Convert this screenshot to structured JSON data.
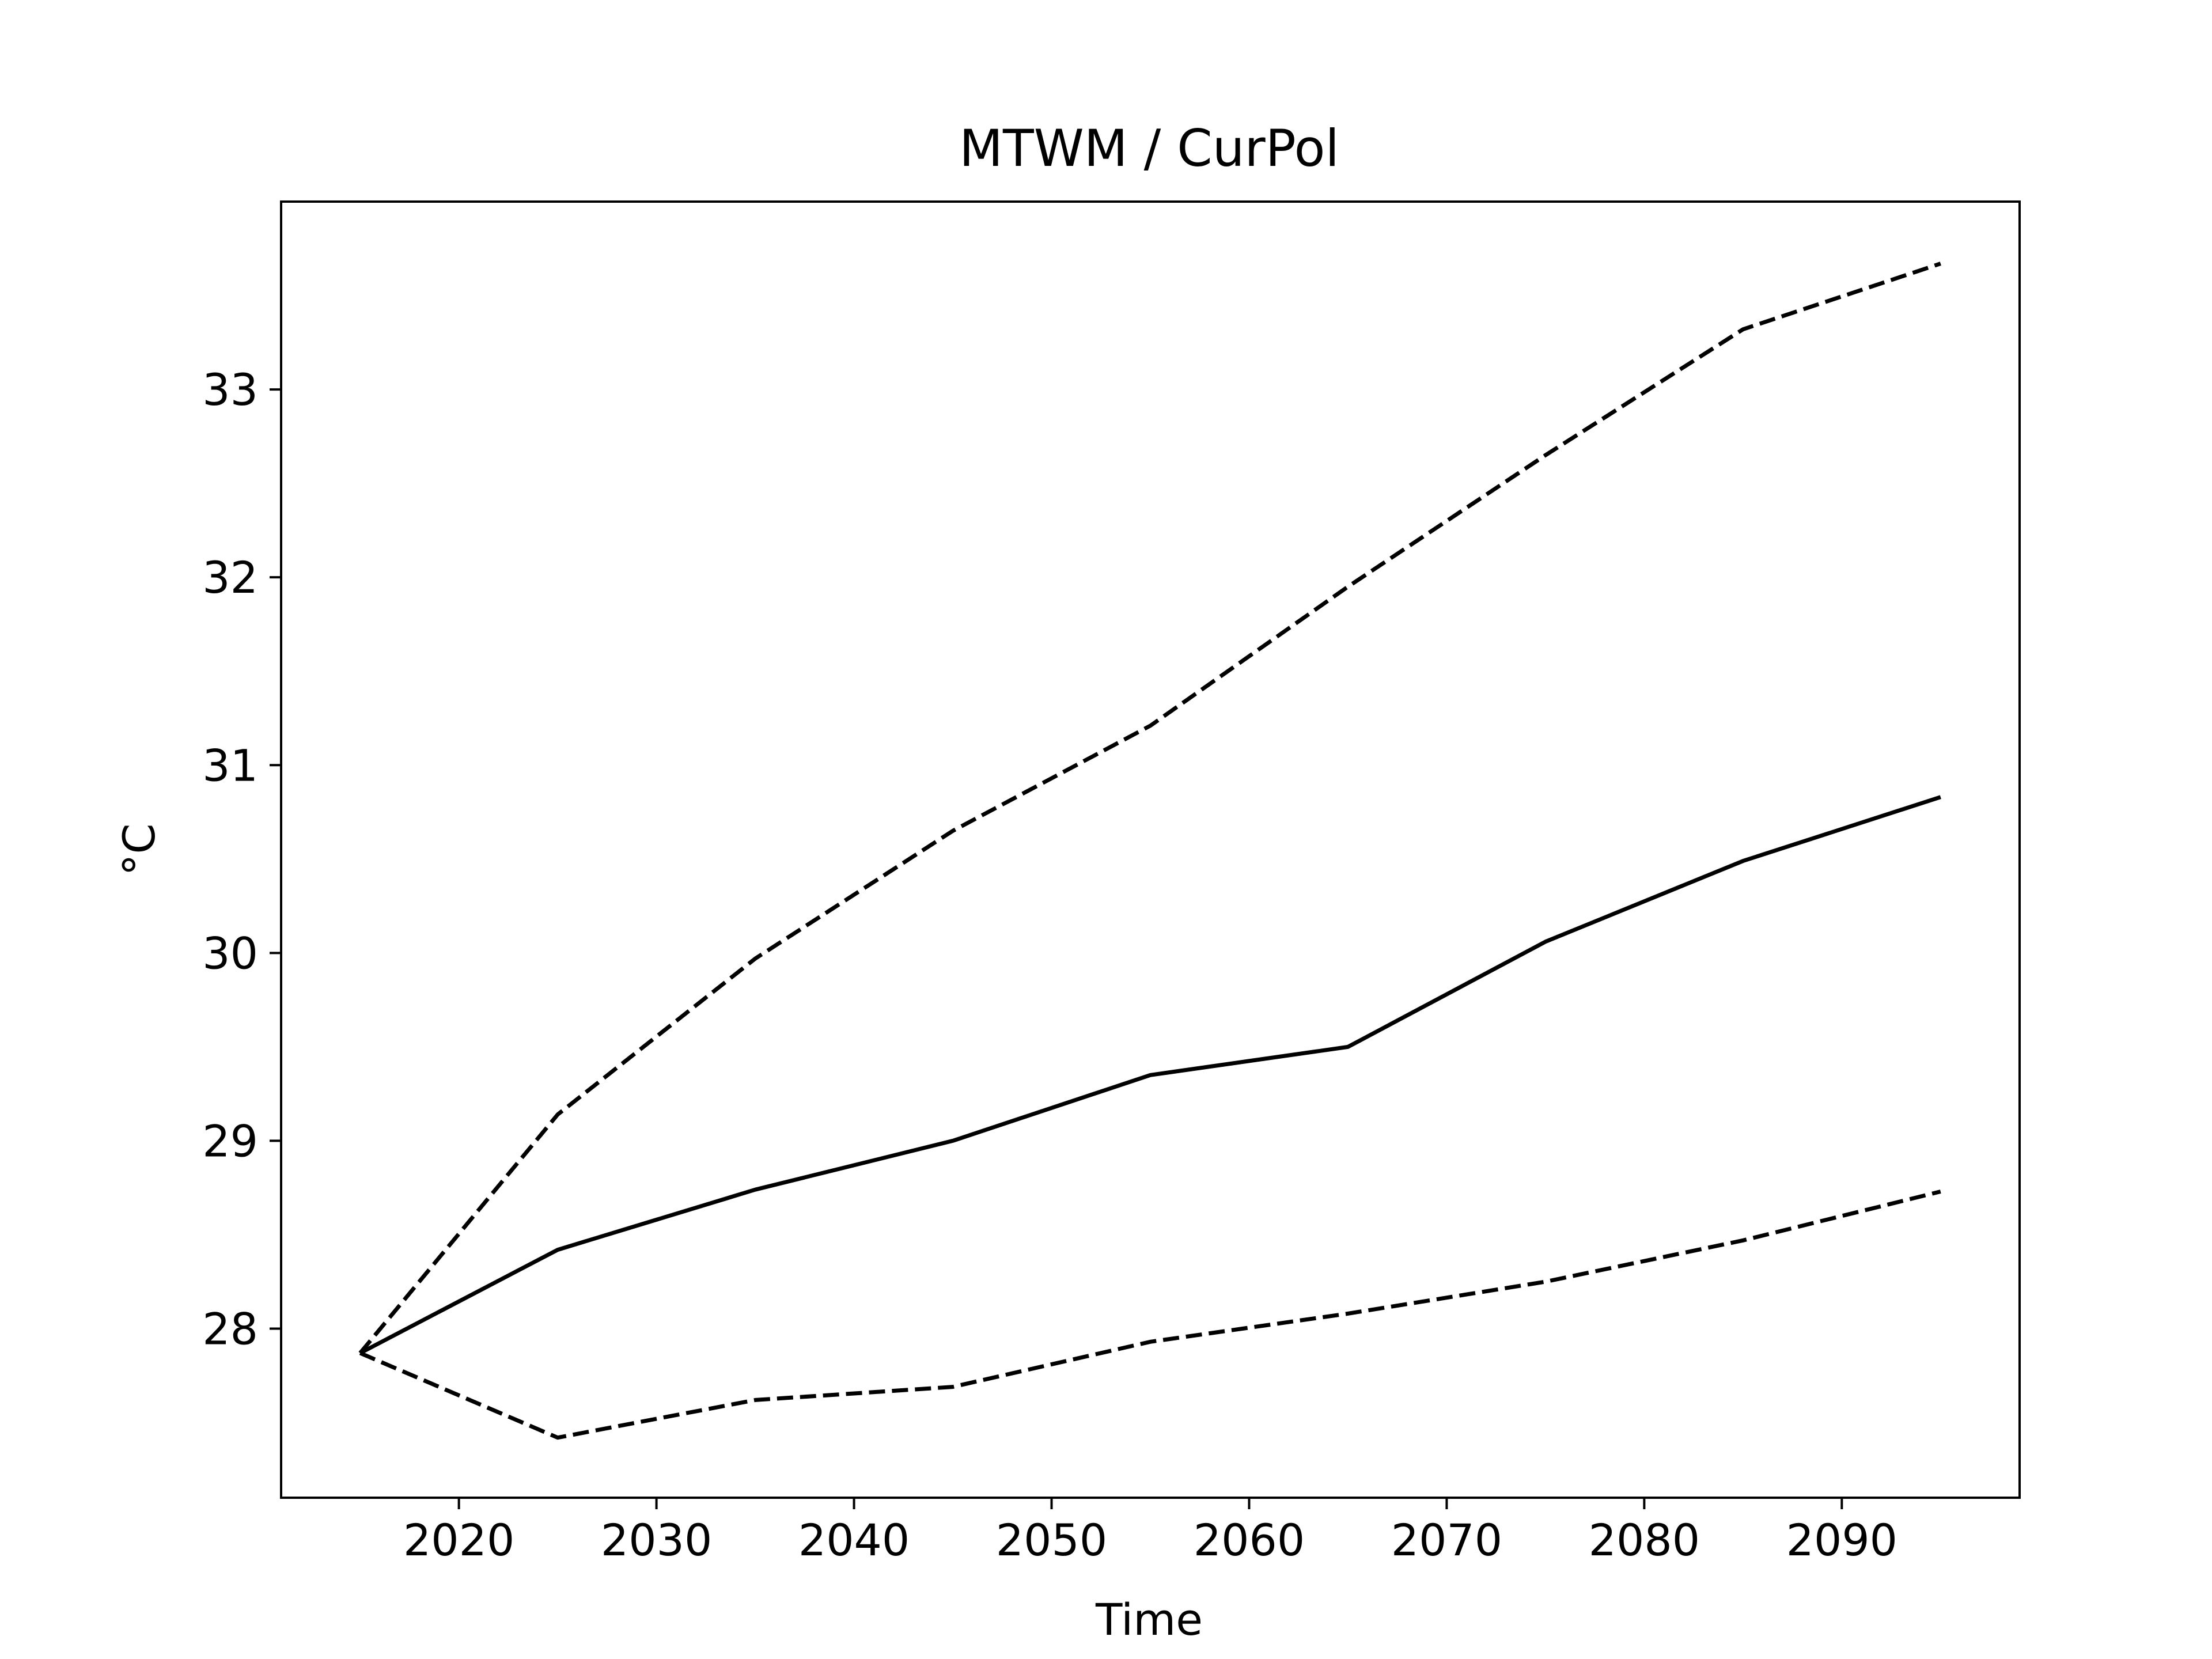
{
  "chart_data": {
    "type": "line",
    "title": "MTWM / CurPol",
    "xlabel": "Time",
    "ylabel": "°C",
    "xlim": [
      2011,
      2099
    ],
    "ylim": [
      27.1,
      34.0
    ],
    "grid": false,
    "x": [
      2015,
      2025,
      2035,
      2045,
      2055,
      2065,
      2075,
      2085,
      2095
    ],
    "x_ticks": [
      2020,
      2030,
      2040,
      2050,
      2060,
      2070,
      2080,
      2090
    ],
    "y_ticks": [
      28,
      29,
      30,
      31,
      32,
      33
    ],
    "series": [
      {
        "style": "solid",
        "color": "#000000",
        "values": [
          27.87,
          28.42,
          28.74,
          29.0,
          29.35,
          29.5,
          30.06,
          30.49,
          30.83
        ]
      },
      {
        "style": "dashed",
        "color": "#000000",
        "values": [
          27.87,
          29.14,
          29.97,
          30.65,
          31.21,
          31.95,
          32.65,
          33.32,
          33.67
        ]
      },
      {
        "style": "dashed",
        "color": "#000000",
        "values": [
          27.87,
          27.42,
          27.62,
          27.69,
          27.93,
          28.08,
          28.25,
          28.47,
          28.73
        ]
      }
    ]
  }
}
